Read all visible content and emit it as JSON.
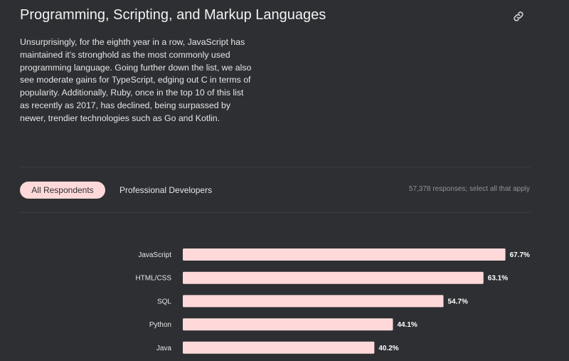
{
  "header": {
    "title": "Programming, Scripting, and Markup Languages"
  },
  "description": "Unsurprisingly, for the eighth year in a row, JavaScript has maintained it's stronghold as the most commonly used programming language. Going further down the list, we also see moderate gains for TypeScript, edging out C in terms of popularity. Additionally, Ruby, once in the top 10 of this list as recently as 2017, has declined, being surpassed by newer, trendier technologies such as Go and Kotlin.",
  "tabs": {
    "all": "All Respondents",
    "professional": "Professional Developers"
  },
  "responses_note": "57,378 responses; select all that apply",
  "colors": {
    "background": "#2d2f33",
    "bar": "#ffd9d9",
    "active_tab": "#ffd9d9"
  },
  "chart_data": {
    "type": "bar",
    "orientation": "horizontal",
    "categories": [
      "JavaScript",
      "HTML/CSS",
      "SQL",
      "Python",
      "Java"
    ],
    "values": [
      67.7,
      63.1,
      54.7,
      44.1,
      40.2
    ],
    "value_labels": [
      "67.7%",
      "63.1%",
      "54.7%",
      "44.1%",
      "40.2%"
    ],
    "unit": "%",
    "xlim": [
      0,
      100
    ]
  }
}
